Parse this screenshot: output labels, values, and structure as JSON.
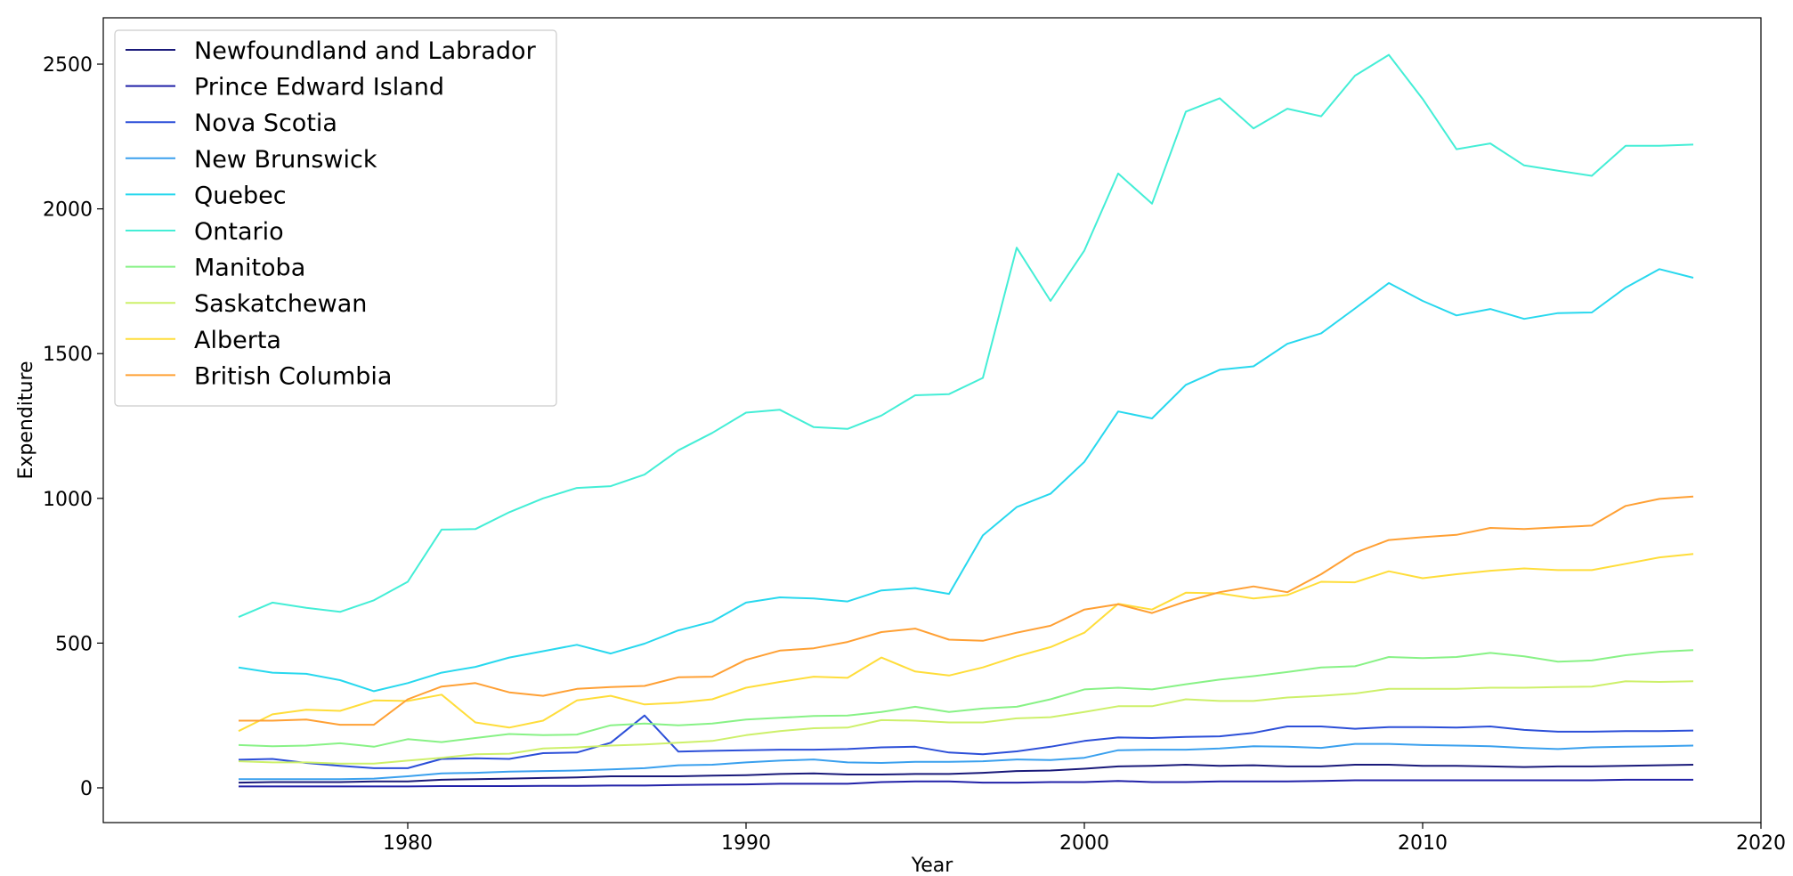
{
  "chart_data": {
    "type": "line",
    "xlabel": "Year",
    "ylabel": "Expenditure",
    "xlim": [
      1971,
      2020
    ],
    "ylim": [
      -120,
      2660
    ],
    "xticks": [
      1980,
      1990,
      2000,
      2010,
      2020
    ],
    "yticks": [
      0,
      500,
      1000,
      1500,
      2000,
      2500
    ],
    "legend_position": "top-left",
    "grid": false,
    "x": [
      1975,
      1976,
      1977,
      1978,
      1979,
      1980,
      1981,
      1982,
      1983,
      1984,
      1985,
      1986,
      1987,
      1988,
      1989,
      1990,
      1991,
      1992,
      1993,
      1994,
      1995,
      1996,
      1997,
      1998,
      1999,
      2000,
      2001,
      2002,
      2003,
      2004,
      2005,
      2006,
      2007,
      2008,
      2009,
      2010,
      2011,
      2012,
      2013,
      2014,
      2015,
      2016,
      2017,
      2018
    ],
    "series": [
      {
        "name": "Newfoundland and Labrador",
        "color": "#1a1a7a",
        "values": [
          18,
          20,
          20,
          20,
          22,
          22,
          28,
          30,
          32,
          34,
          36,
          40,
          40,
          40,
          42,
          44,
          48,
          50,
          46,
          46,
          48,
          48,
          52,
          58,
          60,
          66,
          74,
          76,
          80,
          76,
          78,
          74,
          74,
          80,
          80,
          76,
          76,
          74,
          72,
          74,
          74,
          76,
          78,
          80
        ]
      },
      {
        "name": "Prince Edward Island",
        "color": "#2222a8",
        "values": [
          5,
          5,
          5,
          5,
          5,
          5,
          6,
          6,
          6,
          7,
          7,
          8,
          8,
          10,
          11,
          12,
          14,
          14,
          14,
          20,
          22,
          22,
          18,
          18,
          20,
          20,
          24,
          20,
          20,
          22,
          22,
          22,
          24,
          26,
          26,
          26,
          26,
          26,
          26,
          26,
          26,
          28,
          28,
          28
        ]
      },
      {
        "name": "Nova Scotia",
        "color": "#2c4fd8",
        "values": [
          97,
          100,
          86,
          76,
          68,
          68,
          100,
          102,
          100,
          120,
          122,
          156,
          250,
          125,
          128,
          130,
          132,
          132,
          134,
          140,
          142,
          122,
          116,
          126,
          142,
          162,
          174,
          172,
          176,
          178,
          190,
          212,
          212,
          204,
          210,
          210,
          208,
          212,
          200,
          194,
          194,
          196,
          196,
          198
        ]
      },
      {
        "name": "New Brunswick",
        "color": "#3aa0ee",
        "values": [
          30,
          30,
          30,
          30,
          32,
          40,
          50,
          52,
          56,
          58,
          60,
          64,
          68,
          78,
          80,
          88,
          94,
          98,
          88,
          86,
          90,
          90,
          92,
          98,
          96,
          104,
          130,
          132,
          132,
          136,
          144,
          142,
          138,
          152,
          152,
          148,
          146,
          144,
          138,
          134,
          140,
          142,
          144,
          146
        ]
      },
      {
        "name": "Quebec",
        "color": "#28d8ee",
        "values": [
          416,
          398,
          394,
          372,
          334,
          362,
          398,
          418,
          450,
          472,
          494,
          464,
          498,
          544,
          574,
          640,
          658,
          654,
          644,
          682,
          690,
          670,
          872,
          970,
          1016,
          1126,
          1300,
          1276,
          1392,
          1444,
          1456,
          1534,
          1570,
          1656,
          1744,
          1682,
          1632,
          1654,
          1620,
          1640,
          1642,
          1728,
          1792,
          1762
        ]
      },
      {
        "name": "Ontario",
        "color": "#44eed6",
        "values": [
          590,
          640,
          622,
          608,
          648,
          712,
          892,
          894,
          952,
          1000,
          1036,
          1042,
          1082,
          1166,
          1226,
          1296,
          1306,
          1246,
          1240,
          1286,
          1356,
          1360,
          1416,
          1866,
          1682,
          1856,
          2122,
          2018,
          2336,
          2382,
          2278,
          2346,
          2320,
          2460,
          2532,
          2380,
          2206,
          2226,
          2150,
          2132,
          2114,
          2218,
          2218,
          2222
        ]
      },
      {
        "name": "Manitoba",
        "color": "#88f286",
        "values": [
          148,
          144,
          146,
          154,
          142,
          168,
          158,
          172,
          186,
          182,
          184,
          216,
          222,
          216,
          222,
          236,
          242,
          248,
          250,
          262,
          280,
          262,
          274,
          280,
          306,
          340,
          346,
          340,
          358,
          374,
          386,
          400,
          416,
          420,
          452,
          448,
          452,
          466,
          454,
          436,
          440,
          458,
          470,
          476
        ]
      },
      {
        "name": "Saskatchewan",
        "color": "#cdf06a",
        "values": [
          92,
          88,
          88,
          84,
          84,
          94,
          104,
          116,
          118,
          136,
          140,
          146,
          150,
          156,
          162,
          182,
          196,
          206,
          208,
          234,
          232,
          226,
          226,
          240,
          244,
          262,
          282,
          282,
          306,
          300,
          300,
          312,
          318,
          326,
          342,
          342,
          342,
          346,
          346,
          348,
          350,
          368,
          366,
          368
        ]
      },
      {
        "name": "Alberta",
        "color": "#ffdd3a",
        "values": [
          196,
          254,
          270,
          266,
          302,
          300,
          322,
          226,
          208,
          232,
          302,
          318,
          288,
          294,
          306,
          346,
          366,
          384,
          380,
          450,
          402,
          388,
          416,
          454,
          486,
          536,
          636,
          616,
          674,
          672,
          654,
          666,
          712,
          710,
          748,
          724,
          738,
          750,
          758,
          752,
          752,
          774,
          796,
          808
        ]
      },
      {
        "name": "British Columbia",
        "color": "#ffa034",
        "values": [
          232,
          232,
          236,
          218,
          218,
          306,
          350,
          362,
          330,
          318,
          342,
          348,
          352,
          382,
          384,
          442,
          474,
          482,
          504,
          538,
          550,
          512,
          508,
          536,
          560,
          616,
          634,
          604,
          644,
          676,
          696,
          676,
          738,
          812,
          856,
          866,
          874,
          898,
          894,
          900,
          906,
          974,
          998,
          1006
        ]
      }
    ]
  }
}
